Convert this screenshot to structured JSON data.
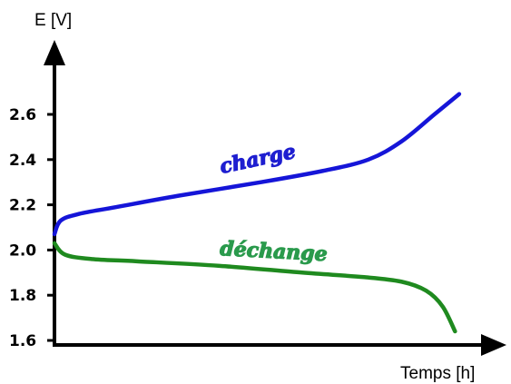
{
  "chart_data": {
    "type": "line",
    "title": "",
    "xlabel": "Temps [h]",
    "ylabel": "E [V]",
    "y_ticks": [
      "1.6",
      "1.8",
      "2.0",
      "2.2",
      "2.4",
      "2.6"
    ],
    "ylim": [
      1.55,
      2.8
    ],
    "xlim": [
      0,
      10
    ],
    "grid": false,
    "legend": "none",
    "series": [
      {
        "name": "charge",
        "color": "#1515d8",
        "label_color": "#1e1ed0",
        "x": [
          0,
          0.15,
          0.6,
          1.5,
          3,
          5,
          6.5,
          7.6,
          8.4,
          9.2,
          9.8
        ],
        "y": [
          2.07,
          2.13,
          2.16,
          2.19,
          2.24,
          2.3,
          2.35,
          2.4,
          2.48,
          2.6,
          2.69
        ]
      },
      {
        "name": "déchange",
        "color": "#1f8a1f",
        "label_color": "#2a9a4c",
        "x": [
          0,
          0.25,
          0.9,
          2,
          4,
          6,
          7.5,
          8.4,
          9,
          9.4,
          9.7
        ],
        "y": [
          2.03,
          1.98,
          1.96,
          1.95,
          1.93,
          1.9,
          1.88,
          1.86,
          1.82,
          1.75,
          1.64
        ]
      }
    ]
  }
}
